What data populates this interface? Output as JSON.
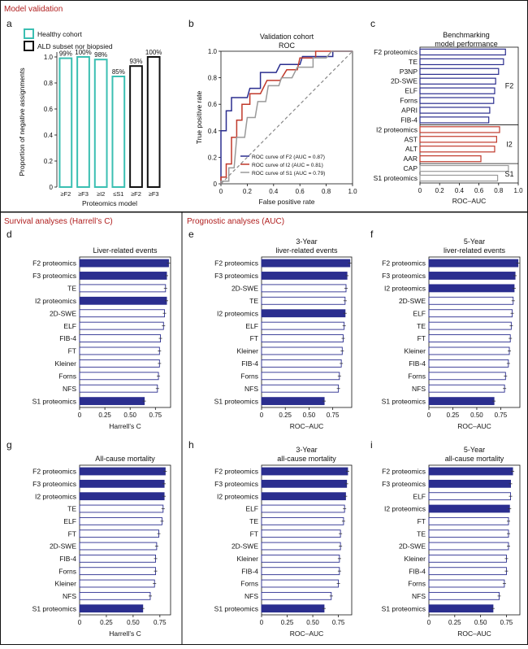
{
  "sections": {
    "validation": "Model validation",
    "survival": "Survival analyses (Harrell’s C)",
    "prognostic": "Prognostic analyses (AUC)"
  },
  "colors": {
    "heading_red": "#b01e1e",
    "teal": "#3bbfb2",
    "navy": "#2b2e8f",
    "red": "#c0392b",
    "gray": "#9a9a9a",
    "black": "#111111"
  },
  "chart_data": [
    {
      "panel": "a",
      "type": "bar",
      "title": "",
      "ylabel": "Proportion of negative assignments",
      "xlabel": "Proteomics model",
      "ylim": [
        0,
        1.0
      ],
      "yticks": [
        "0",
        "0.2",
        "0.4",
        "0.6",
        "0.8",
        "1.0"
      ],
      "legend": [
        "Healthy cohort",
        "ALD subset nor biopsied"
      ],
      "categories": [
        "≥F2",
        "≥F3",
        "≥I2",
        "≤S1",
        "≥F2",
        "≥F3"
      ],
      "values": [
        0.99,
        1.0,
        0.98,
        0.85,
        0.93,
        1.0
      ],
      "labels": [
        "99%",
        "100%",
        "98%",
        "85%",
        "93%",
        "100%"
      ],
      "groups": [
        0,
        0,
        0,
        0,
        1,
        1
      ]
    },
    {
      "panel": "b",
      "type": "line",
      "title": "Validation cohort",
      "subtitle": "ROC",
      "xlabel": "False positive rate",
      "ylabel": "True positive rate",
      "xlim": [
        0,
        1
      ],
      "ylim": [
        0,
        1
      ],
      "xticks": [
        "0",
        "0.2",
        "0.4",
        "0.6",
        "0.8",
        "1.0"
      ],
      "yticks": [
        "0",
        "0.2",
        "0.4",
        "0.6",
        "0.8",
        "1.0"
      ],
      "series": [
        {
          "name": "ROC curve of F2 (AUC = 0.87)",
          "color": "#2b2e8f",
          "points": [
            [
              0,
              0
            ],
            [
              0,
              0.4
            ],
            [
              0.04,
              0.4
            ],
            [
              0.04,
              0.55
            ],
            [
              0.08,
              0.55
            ],
            [
              0.08,
              0.65
            ],
            [
              0.2,
              0.65
            ],
            [
              0.22,
              0.72
            ],
            [
              0.3,
              0.72
            ],
            [
              0.3,
              0.84
            ],
            [
              0.42,
              0.84
            ],
            [
              0.45,
              0.9
            ],
            [
              0.6,
              0.9
            ],
            [
              0.62,
              0.96
            ],
            [
              0.85,
              0.96
            ],
            [
              0.85,
              1.0
            ],
            [
              1.0,
              1.0
            ]
          ]
        },
        {
          "name": "ROC curve of I2 (AUC = 0.81)",
          "color": "#c0392b",
          "points": [
            [
              0,
              0
            ],
            [
              0,
              0.05
            ],
            [
              0.04,
              0.05
            ],
            [
              0.04,
              0.15
            ],
            [
              0.08,
              0.15
            ],
            [
              0.08,
              0.35
            ],
            [
              0.12,
              0.35
            ],
            [
              0.12,
              0.48
            ],
            [
              0.16,
              0.48
            ],
            [
              0.16,
              0.6
            ],
            [
              0.22,
              0.6
            ],
            [
              0.22,
              0.68
            ],
            [
              0.3,
              0.68
            ],
            [
              0.35,
              0.78
            ],
            [
              0.45,
              0.78
            ],
            [
              0.5,
              0.86
            ],
            [
              0.58,
              0.86
            ],
            [
              0.6,
              0.95
            ],
            [
              0.72,
              0.95
            ],
            [
              0.72,
              1.0
            ],
            [
              1.0,
              1.0
            ]
          ]
        },
        {
          "name": "ROC curve of S1 (AUC = 0.79)",
          "color": "#9a9a9a",
          "points": [
            [
              0,
              0
            ],
            [
              0,
              0.02
            ],
            [
              0.06,
              0.02
            ],
            [
              0.06,
              0.12
            ],
            [
              0.1,
              0.12
            ],
            [
              0.12,
              0.35
            ],
            [
              0.18,
              0.35
            ],
            [
              0.2,
              0.5
            ],
            [
              0.26,
              0.5
            ],
            [
              0.28,
              0.62
            ],
            [
              0.34,
              0.62
            ],
            [
              0.36,
              0.74
            ],
            [
              0.44,
              0.74
            ],
            [
              0.46,
              0.8
            ],
            [
              0.54,
              0.8
            ],
            [
              0.58,
              0.88
            ],
            [
              0.7,
              0.88
            ],
            [
              0.7,
              0.95
            ],
            [
              0.8,
              0.95
            ],
            [
              0.84,
              1.0
            ],
            [
              1.0,
              1.0
            ]
          ]
        }
      ]
    },
    {
      "panel": "c",
      "type": "bar",
      "orientation": "horizontal",
      "title": "Benchmarking model performance",
      "xlabel": "ROC–AUC",
      "xlim": [
        0,
        1.0
      ],
      "xticks": [
        "0",
        "0.2",
        "0.4",
        "0.6",
        "0.8",
        "1.0"
      ],
      "categories": [
        "F2 proteomics",
        "TE",
        "P3NP",
        "2D-SWE",
        "ELF",
        "Forns",
        "APRI",
        "FIB-4",
        "I2 proteomics",
        "AST",
        "ALT",
        "AAR",
        "CAP",
        "S1 proteomics"
      ],
      "values": [
        0.87,
        0.85,
        0.8,
        0.77,
        0.76,
        0.75,
        0.71,
        0.7,
        0.81,
        0.78,
        0.76,
        0.62,
        0.9,
        0.79
      ],
      "groups": [
        "F2",
        "F2",
        "F2",
        "F2",
        "F2",
        "F2",
        "F2",
        "F2",
        "I2",
        "I2",
        "I2",
        "I2",
        "S1",
        "S1"
      ],
      "group_labels": [
        "F2",
        "I2",
        "S1"
      ]
    },
    {
      "panel": "d",
      "type": "bar",
      "orientation": "horizontal",
      "title": "Liver-related events",
      "xlabel": "Harrell’s C",
      "xlim": [
        0,
        0.9
      ],
      "xticks": [
        "0",
        "0.25",
        "0.50",
        "0.75"
      ],
      "categories": [
        "F2 proteomics",
        "F3 proteomics",
        "TE",
        "I2 proteomics",
        "2D-SWE",
        "ELF",
        "FIB-4",
        "FT",
        "Kleiner",
        "Forns",
        "NFS",
        "S1 proteomics"
      ],
      "values": [
        0.88,
        0.86,
        0.85,
        0.86,
        0.84,
        0.83,
        0.8,
        0.79,
        0.79,
        0.78,
        0.77,
        0.64
      ],
      "highlight": [
        true,
        true,
        false,
        true,
        false,
        false,
        false,
        false,
        false,
        false,
        false,
        true
      ]
    },
    {
      "panel": "e",
      "type": "bar",
      "orientation": "horizontal",
      "title": "3-Year liver-related events",
      "xlabel": "ROC–AUC",
      "xlim": [
        0,
        0.95
      ],
      "xticks": [
        "0",
        "0.25",
        "0.50",
        "0.75"
      ],
      "categories": [
        "F2 proteomics",
        "F3 proteomics",
        "2D-SWE",
        "TE",
        "I2 proteomics",
        "ELF",
        "FT",
        "Kleiner",
        "FIB-4",
        "Forns",
        "NFS",
        "S1 proteomics"
      ],
      "values": [
        0.93,
        0.9,
        0.89,
        0.88,
        0.88,
        0.87,
        0.86,
        0.85,
        0.84,
        0.82,
        0.81,
        0.66
      ],
      "highlight": [
        true,
        true,
        false,
        false,
        true,
        false,
        false,
        false,
        false,
        false,
        false,
        true
      ]
    },
    {
      "panel": "f",
      "type": "bar",
      "orientation": "horizontal",
      "title": "5-Year liver-related events",
      "xlabel": "ROC–AUC",
      "xlim": [
        0,
        0.95
      ],
      "xticks": [
        "0",
        "0.25",
        "0.50",
        "0.75"
      ],
      "categories": [
        "F2 proteomics",
        "F3 proteomics",
        "I2 proteomics",
        "2D-SWE",
        "ELF",
        "TE",
        "FT",
        "Kleiner",
        "FIB-4",
        "Forns",
        "NFS",
        "S1 proteomics"
      ],
      "values": [
        0.93,
        0.9,
        0.89,
        0.88,
        0.87,
        0.86,
        0.85,
        0.84,
        0.83,
        0.8,
        0.79,
        0.68
      ],
      "highlight": [
        true,
        true,
        true,
        false,
        false,
        false,
        false,
        false,
        false,
        false,
        false,
        true
      ]
    },
    {
      "panel": "g",
      "type": "bar",
      "orientation": "horizontal",
      "title": "All-cause mortality",
      "xlabel": "Harrell’s C",
      "xlim": [
        0,
        0.85
      ],
      "xticks": [
        "0",
        "0.25",
        "0.50",
        "0.75"
      ],
      "categories": [
        "F2 proteomics",
        "F3 proteomics",
        "I2 proteomics",
        "TE",
        "ELF",
        "FT",
        "2D-SWE",
        "FIB-4",
        "Forns",
        "Kleiner",
        "NFS",
        "S1 proteomics"
      ],
      "values": [
        0.8,
        0.79,
        0.79,
        0.78,
        0.77,
        0.74,
        0.72,
        0.71,
        0.71,
        0.7,
        0.66,
        0.59
      ],
      "highlight": [
        true,
        true,
        true,
        false,
        false,
        false,
        false,
        false,
        false,
        false,
        false,
        true
      ]
    },
    {
      "panel": "h",
      "type": "bar",
      "orientation": "horizontal",
      "title": "3-Year all-cause mortality",
      "xlabel": "ROC–AUC",
      "xlim": [
        0,
        0.88
      ],
      "xticks": [
        "0",
        "0.25",
        "0.50",
        "0.75"
      ],
      "categories": [
        "F2 proteomics",
        "F3 proteomics",
        "I2 proteomics",
        "ELF",
        "TE",
        "FT",
        "2D-SWE",
        "Kleiner",
        "FIB-4",
        "Forns",
        "NFS",
        "S1 proteomics"
      ],
      "values": [
        0.84,
        0.83,
        0.82,
        0.81,
        0.8,
        0.77,
        0.77,
        0.76,
        0.76,
        0.75,
        0.68,
        0.61
      ],
      "highlight": [
        true,
        true,
        true,
        false,
        false,
        false,
        false,
        false,
        false,
        false,
        false,
        true
      ]
    },
    {
      "panel": "i",
      "type": "bar",
      "orientation": "horizontal",
      "title": "5-Year all-cause mortality",
      "xlabel": "ROC–AUC",
      "xlim": [
        0,
        0.88
      ],
      "xticks": [
        "0",
        "0.25",
        "0.50",
        "0.75"
      ],
      "categories": [
        "F2 proteomics",
        "F3 proteomics",
        "ELF",
        "I2 proteomics",
        "FT",
        "TE",
        "2D-SWE",
        "Kleiner",
        "FIB-4",
        "Forns",
        "NFS",
        "S1 proteomics"
      ],
      "values": [
        0.81,
        0.79,
        0.79,
        0.78,
        0.77,
        0.77,
        0.77,
        0.75,
        0.75,
        0.73,
        0.68,
        0.62
      ],
      "highlight": [
        true,
        true,
        false,
        true,
        false,
        false,
        false,
        false,
        false,
        false,
        false,
        true
      ]
    }
  ]
}
